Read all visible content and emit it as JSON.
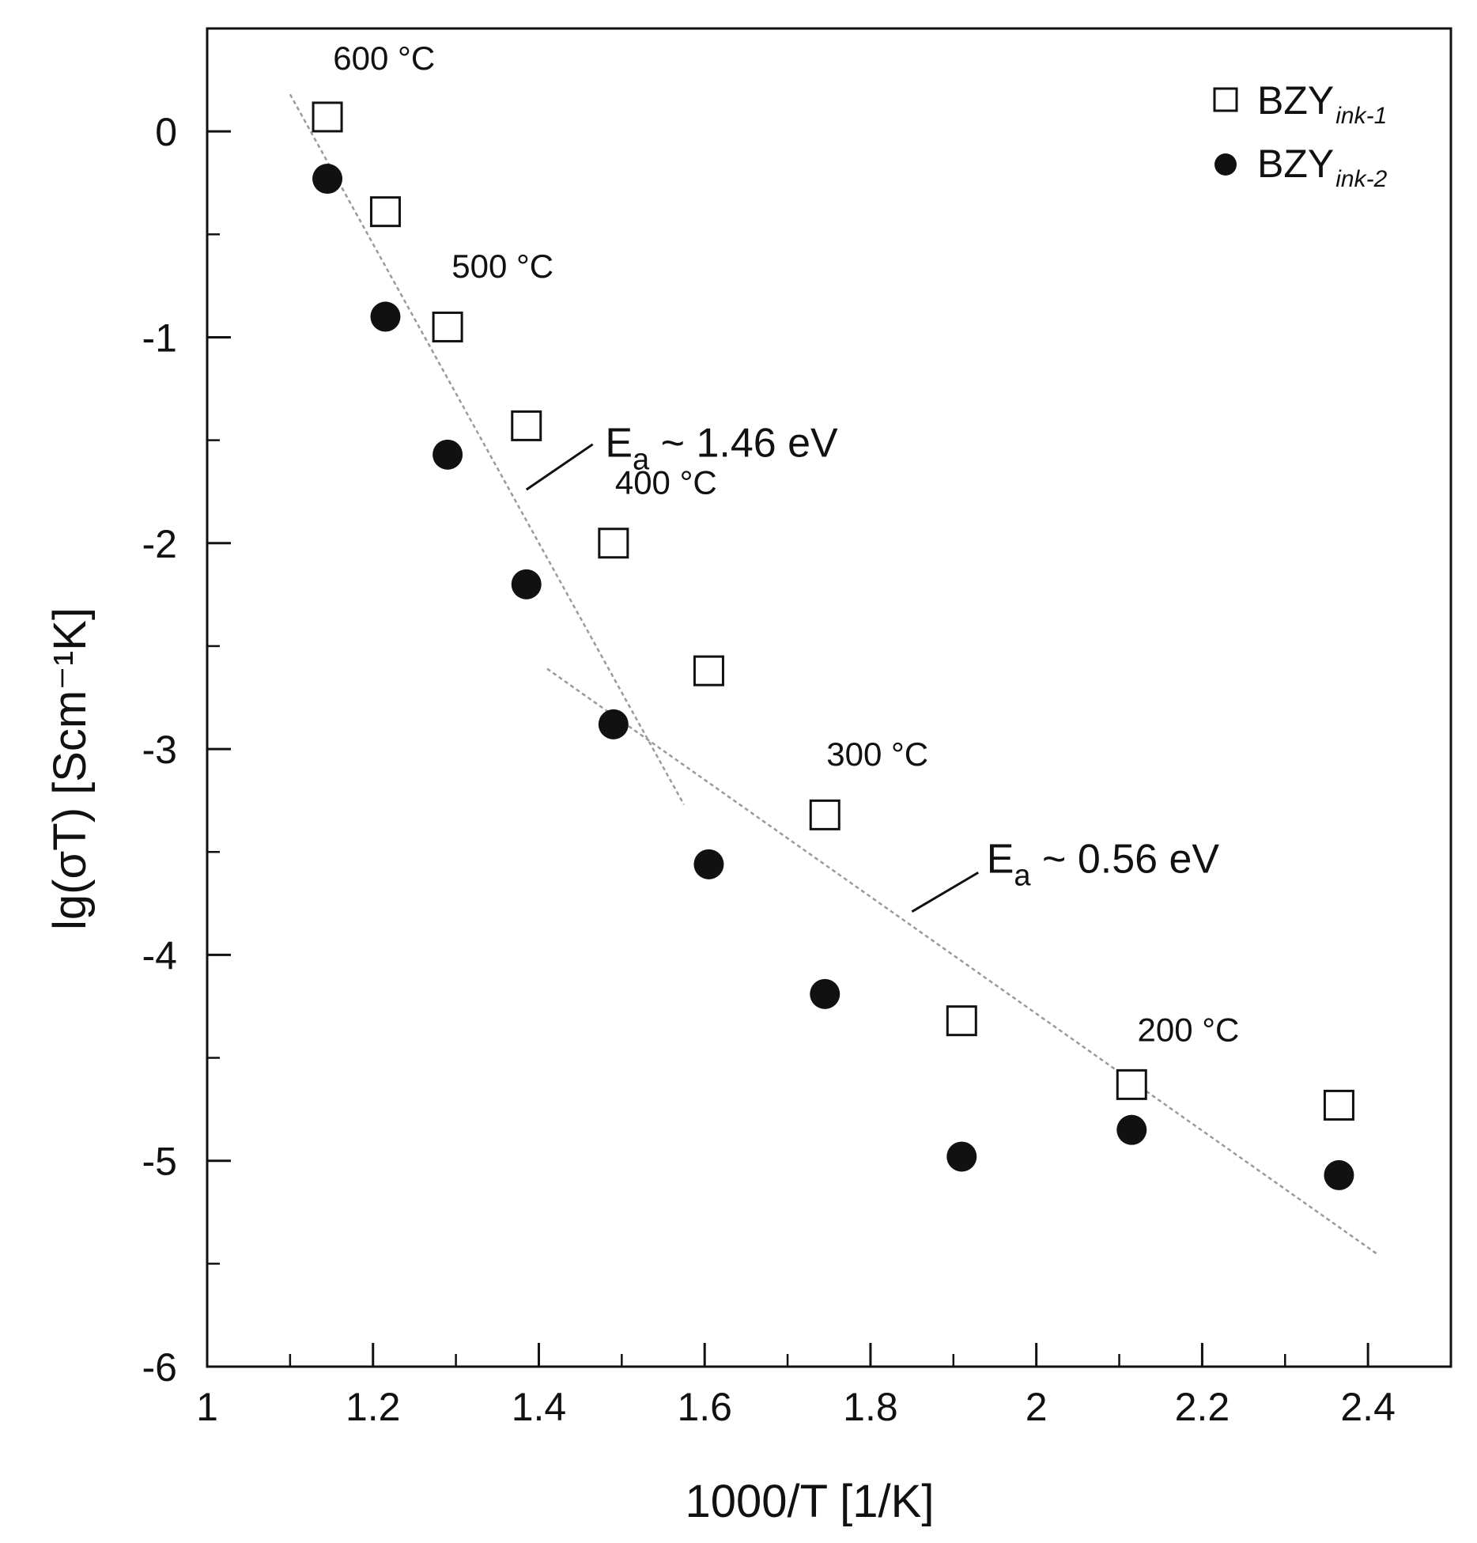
{
  "chart_data": {
    "type": "scatter",
    "xlabel": "1000/T [1/K]",
    "ylabel": "lg(σT) [Scm⁻¹K]",
    "xlim": [
      1.0,
      2.5
    ],
    "ylim": [
      -6,
      0.5
    ],
    "x_ticks": [
      1,
      1.2,
      1.4,
      1.6,
      1.8,
      2,
      2.2,
      2.4
    ],
    "x_tick_labels": [
      "1",
      "1.2",
      "1.4",
      "1.6",
      "1.8",
      "2",
      "2.2",
      "2.4"
    ],
    "y_ticks": [
      0,
      -1,
      -2,
      -3,
      -4,
      -5,
      -6
    ],
    "y_tick_labels": [
      "0",
      "-1",
      "-2",
      "-3",
      "-4",
      "-5",
      "-6"
    ],
    "series": [
      {
        "name": "BZY",
        "subscript": "ink-1",
        "marker": "open-square",
        "x": [
          1.145,
          1.215,
          1.29,
          1.385,
          1.49,
          1.605,
          1.745,
          1.91,
          2.115,
          2.365
        ],
        "y": [
          0.07,
          -0.39,
          -0.95,
          -1.43,
          -2.0,
          -2.62,
          -3.32,
          -4.32,
          -4.63,
          -4.73
        ]
      },
      {
        "name": "BZY",
        "subscript": "ink-2",
        "marker": "filled-circle",
        "x": [
          1.145,
          1.215,
          1.29,
          1.385,
          1.49,
          1.605,
          1.745,
          1.91,
          2.115,
          2.365
        ],
        "y": [
          -0.23,
          -0.9,
          -1.57,
          -2.2,
          -2.88,
          -3.56,
          -4.19,
          -4.98,
          -4.85,
          -5.07
        ]
      }
    ],
    "fit_lines": [
      {
        "name": "high-temperature fit",
        "x": [
          1.1,
          1.575
        ],
        "y": [
          0.18,
          -3.27
        ]
      },
      {
        "name": "low-temperature fit",
        "x": [
          1.41,
          2.41
        ],
        "y": [
          -2.61,
          -5.45
        ]
      }
    ],
    "annotations": {
      "temperatures": [
        {
          "text": "600 °C",
          "x": 1.15,
          "y": 0.3
        },
        {
          "text": "500 °C",
          "x": 1.293,
          "y": -0.71
        },
        {
          "text": "400 °C",
          "x": 1.49,
          "y": -1.76
        },
        {
          "text": "300 °C",
          "x": 1.745,
          "y": -3.08
        },
        {
          "text": "200 °C",
          "x": 2.12,
          "y": -4.42
        }
      ],
      "activation_energies": [
        {
          "prefix": "E",
          "subscript": "a",
          "value": " ~ 1.46 eV",
          "x": 1.48,
          "y": -1.58,
          "leader": [
            [
              1.385,
              -1.74
            ],
            [
              1.465,
              -1.52
            ]
          ]
        },
        {
          "prefix": "E",
          "subscript": "a",
          "value": " ~ 0.56 eV",
          "x": 1.94,
          "y": -3.6,
          "leader": [
            [
              1.85,
              -3.79
            ],
            [
              1.93,
              -3.6
            ]
          ]
        }
      ]
    },
    "legend_position": "top-right"
  }
}
